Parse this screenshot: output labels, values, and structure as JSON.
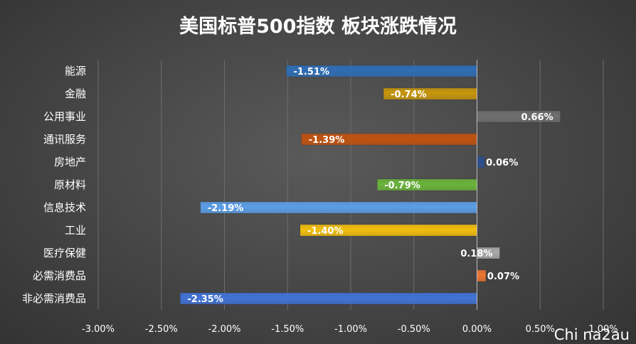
{
  "chart_data": {
    "type": "bar",
    "orientation": "horizontal",
    "title": "美国标普500指数 板块涨跌情况",
    "categories": [
      "能源",
      "金融",
      "公用事业",
      "通讯服务",
      "房地产",
      "原材料",
      "信息技术",
      "工业",
      "医疗保健",
      "必需消费品",
      "非必需消费品"
    ],
    "values": [
      -1.51,
      -0.74,
      0.66,
      -1.39,
      0.06,
      -0.79,
      -2.19,
      -1.4,
      0.18,
      0.07,
      -2.35
    ],
    "data_labels": [
      "-1.51%",
      "-0.74%",
      "0.66%",
      "-1.39%",
      "0.06%",
      "-0.79%",
      "-2.19%",
      "-1.40%",
      "0.18%",
      "0.07%",
      "-2.35%"
    ],
    "colors": [
      "#2e6db4",
      "#c8960c",
      "#6e6e6e",
      "#c0520f",
      "#2b4f8e",
      "#6ab43a",
      "#5b9ee6",
      "#f3bf0c",
      "#a9a9a9",
      "#ee7631",
      "#4173d6"
    ],
    "xlim": [
      -3.0,
      1.0
    ],
    "xticks": [
      -3.0,
      -2.5,
      -2.0,
      -1.5,
      -1.0,
      -0.5,
      0.0,
      0.5,
      1.0
    ],
    "xtick_labels": [
      "-3.00%",
      "-2.50%",
      "-2.00%",
      "-1.50%",
      "-1.00%",
      "-0.50%",
      "0.00%",
      "0.50%",
      "1.00%"
    ],
    "xlabel": "",
    "ylabel": "",
    "grid": true,
    "legend": "none"
  },
  "watermark": "Chi na2au"
}
